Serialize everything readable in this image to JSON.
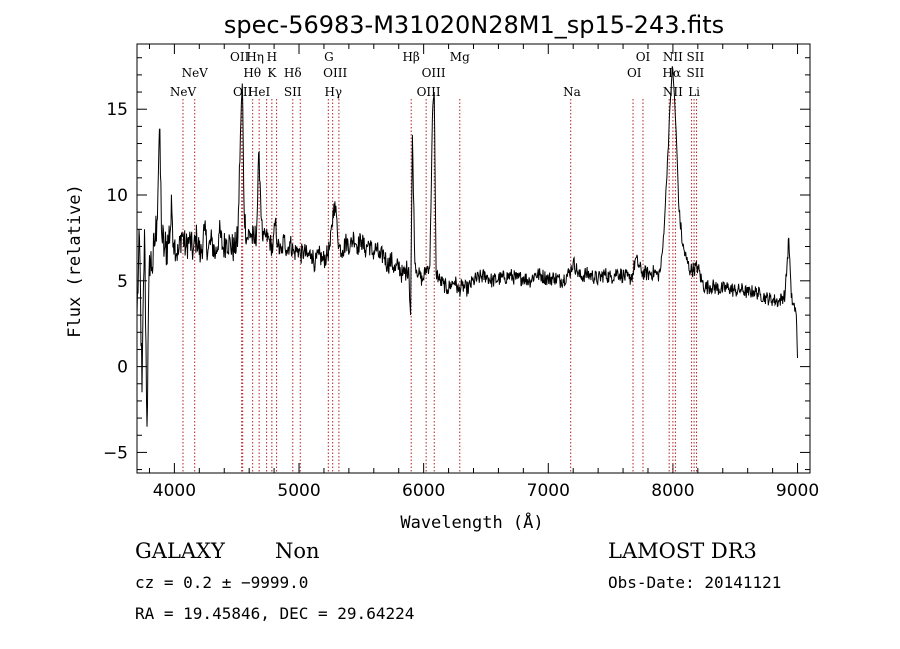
{
  "chart_data": {
    "type": "line",
    "title": "spec-56983-M31020N28M1_sp15-243.fits",
    "xlabel": "Wavelength (Å)",
    "ylabel": "Flux (relative)",
    "xlim": [
      3700,
      9100
    ],
    "ylim": [
      -6.2,
      18.8
    ],
    "x_ticks": [
      4000,
      5000,
      6000,
      7000,
      8000,
      9000
    ],
    "y_ticks": [
      -5,
      0,
      5,
      10,
      15
    ],
    "x_tick_labels": [
      "4000",
      "5000",
      "6000",
      "7000",
      "8000",
      "9000"
    ],
    "y_tick_labels": [
      "−5",
      "0",
      "5",
      "10",
      "15"
    ],
    "grid": false,
    "series": [
      {
        "x": [
          3700,
          3720,
          3740,
          3760,
          3780,
          3800,
          3820,
          3840,
          3860,
          3880,
          3900,
          3920,
          3950,
          3980,
          4000,
          4030,
          4060,
          4090,
          4120,
          4150,
          4180,
          4210,
          4240,
          4270,
          4300,
          4330,
          4360,
          4390,
          4420,
          4450,
          4480,
          4510,
          4530,
          4545,
          4560,
          4580,
          4610,
          4640,
          4660,
          4680,
          4700,
          4710,
          4730,
          4760,
          4790,
          4810,
          4830,
          4860,
          4880,
          4900,
          4930,
          4960,
          4990,
          5010,
          5040,
          5070,
          5100,
          5130,
          5160,
          5190,
          5220,
          5250,
          5280,
          5300,
          5320,
          5350,
          5380,
          5410,
          5440,
          5470,
          5500,
          5530,
          5560,
          5590,
          5620,
          5650,
          5680,
          5710,
          5740,
          5770,
          5800,
          5830,
          5860,
          5880,
          5895,
          5910,
          5930,
          5960,
          5990,
          6020,
          6050,
          6070,
          6085,
          6100,
          6130,
          6160,
          6190,
          6220,
          6250,
          6280,
          6310,
          6350,
          6400,
          6450,
          6500,
          6550,
          6600,
          6650,
          6700,
          6750,
          6800,
          6850,
          6900,
          6950,
          7000,
          7050,
          7100,
          7150,
          7180,
          7200,
          7230,
          7260,
          7300,
          7350,
          7400,
          7450,
          7500,
          7550,
          7600,
          7650,
          7680,
          7700,
          7750,
          7800,
          7850,
          7880,
          7900,
          7920,
          7940,
          7960,
          7980,
          7995,
          8010,
          8030,
          8050,
          8080,
          8110,
          8140,
          8170,
          8200,
          8230,
          8260,
          8300,
          8350,
          8400,
          8450,
          8500,
          8550,
          8600,
          8650,
          8700,
          8750,
          8800,
          8850,
          8900,
          8930,
          8950,
          8970,
          8990,
          9000
        ],
        "values": [
          3.0,
          7.5,
          -1.5,
          8.0,
          -3.5,
          6.5,
          5.8,
          7.0,
          8.5,
          13.8,
          7.5,
          6.8,
          7.2,
          9.0,
          7.2,
          6.5,
          7.8,
          6.9,
          7.4,
          6.7,
          7.6,
          6.4,
          7.9,
          6.8,
          7.3,
          6.5,
          7.8,
          6.9,
          7.4,
          7.1,
          6.8,
          7.5,
          13.5,
          16.5,
          9.0,
          7.5,
          7.8,
          7.2,
          8.0,
          12.5,
          8.5,
          7.3,
          7.6,
          7.4,
          6.8,
          8.5,
          7.0,
          6.6,
          7.5,
          6.8,
          7.2,
          6.6,
          6.9,
          6.5,
          6.7,
          6.4,
          6.6,
          6.0,
          6.5,
          6.2,
          6.4,
          7.0,
          9.5,
          8.8,
          7.0,
          6.8,
          7.3,
          7.0,
          7.6,
          7.0,
          7.4,
          6.8,
          7.2,
          6.6,
          6.9,
          6.3,
          6.6,
          5.9,
          6.2,
          5.6,
          5.9,
          5.3,
          5.6,
          5.8,
          3.0,
          13.5,
          6.0,
          5.4,
          5.0,
          5.7,
          5.9,
          14.5,
          16.0,
          5.5,
          5.0,
          4.8,
          4.5,
          4.8,
          5.0,
          4.4,
          4.7,
          4.5,
          5.0,
          5.2,
          5.3,
          5.0,
          5.1,
          5.2,
          5.3,
          5.1,
          5.2,
          5.0,
          5.4,
          5.3,
          5.1,
          5.2,
          5.0,
          5.3,
          5.6,
          6.1,
          5.6,
          5.2,
          5.4,
          5.3,
          5.1,
          5.4,
          5.2,
          5.5,
          5.3,
          5.1,
          5.4,
          6.3,
          5.5,
          5.4,
          5.5,
          5.3,
          5.6,
          7.0,
          9.5,
          12.5,
          15.5,
          17.5,
          16.0,
          13.0,
          9.0,
          7.0,
          6.2,
          5.6,
          5.7,
          5.8,
          5.0,
          4.6,
          4.7,
          4.6,
          4.5,
          4.6,
          4.4,
          4.5,
          4.3,
          4.4,
          4.2,
          4.0,
          3.9,
          3.8,
          4.2,
          7.5,
          4.0,
          3.6,
          3.0,
          0.5
        ]
      }
    ],
    "line_markers": [
      {
        "x": 4069,
        "row": 2,
        "dx": 0,
        "label": "NeV"
      },
      {
        "x": 4163,
        "row": 1,
        "dx": 0,
        "label": "NeV"
      },
      {
        "x": 4540,
        "row": 0,
        "dx": -2,
        "label": "OII"
      },
      {
        "x": 4548,
        "row": 2,
        "dx": 0,
        "label": "OII"
      },
      {
        "x": 4600,
        "row": 0,
        "dx": 6,
        "label": "Hη"
      },
      {
        "x": 4625,
        "row": 1,
        "dx": 0,
        "label": "Hθ"
      },
      {
        "x": 4680,
        "row": 2,
        "dx": 0,
        "label": "HeI"
      },
      {
        "x": 4782,
        "row": 0,
        "dx": 0,
        "label": "H"
      },
      {
        "x": 4782,
        "row": 1,
        "dx": 0,
        "label": "K"
      },
      {
        "x": 4950,
        "row": 1,
        "dx": 0,
        "label": "Hδ"
      },
      {
        "x": 4950,
        "row": 2,
        "dx": 0,
        "label": "SII"
      },
      {
        "x": 5240,
        "row": 0,
        "dx": 0,
        "label": "G"
      },
      {
        "x": 5290,
        "row": 1,
        "dx": 0,
        "label": "OIII"
      },
      {
        "x": 5275,
        "row": 2,
        "dx": 0,
        "label": "Hγ"
      },
      {
        "x": 5900,
        "row": 0,
        "dx": 0,
        "label": "Hβ"
      },
      {
        "x": 6080,
        "row": 1,
        "dx": 0,
        "label": "OIII"
      },
      {
        "x": 6040,
        "row": 2,
        "dx": 0,
        "label": "OIII"
      },
      {
        "x": 6290,
        "row": 0,
        "dx": 0,
        "label": "Mg"
      },
      {
        "x": 7190,
        "row": 2,
        "dx": 0,
        "label": "Na"
      },
      {
        "x": 7760,
        "row": 0,
        "dx": 0,
        "label": "OI"
      },
      {
        "x": 7690,
        "row": 1,
        "dx": 0,
        "label": "OI"
      },
      {
        "x": 8000,
        "row": 0,
        "dx": 0,
        "label": "NII"
      },
      {
        "x": 7990,
        "row": 1,
        "dx": 0,
        "label": "Hα"
      },
      {
        "x": 8000,
        "row": 2,
        "dx": 0,
        "label": "NII"
      },
      {
        "x": 8180,
        "row": 0,
        "dx": 0,
        "label": "SII"
      },
      {
        "x": 8180,
        "row": 1,
        "dx": 0,
        "label": "SII"
      },
      {
        "x": 8170,
        "row": 2,
        "dx": 0,
        "label": "Li"
      }
    ],
    "marker_lines_x": [
      4069,
      4163,
      4540,
      4548,
      4628,
      4680,
      4740,
      4782,
      4820,
      4950,
      5010,
      5235,
      5270,
      5320,
      5900,
      6020,
      6085,
      6290,
      7180,
      7680,
      7760,
      7970,
      8000,
      8020,
      8150,
      8170,
      8190
    ]
  },
  "info": {
    "object_class": "GALAXY",
    "subclass": "Non",
    "survey": "LAMOST DR3",
    "cz": "cz = 0.2 ± −9999.0",
    "obs_date": "Obs-Date: 20141121",
    "radec": "RA =  19.45846, DEC =  29.64224"
  },
  "colors": {
    "spectrum": "#000000",
    "marker_line": "#b22222",
    "axis": "#000000"
  }
}
